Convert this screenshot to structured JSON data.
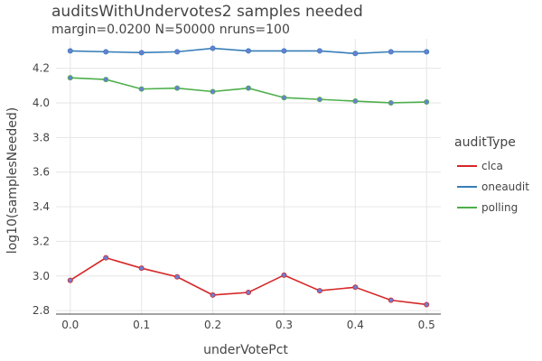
{
  "chart_data": {
    "type": "line",
    "title": "auditsWithUndervotes2 samples needed",
    "subtitle": "margin=0.0200 N=50000 nruns=100",
    "xlabel": "underVotePct",
    "ylabel": "log10(samplesNeeded)",
    "xlim": [
      -0.02,
      0.52
    ],
    "ylim": [
      2.78,
      4.37
    ],
    "xticks": [
      0.0,
      0.1,
      0.2,
      0.3,
      0.4,
      0.5
    ],
    "xtick_labels": [
      "0.0",
      "0.1",
      "0.2",
      "0.3",
      "0.4",
      "0.5"
    ],
    "yticks": [
      2.8,
      3.0,
      3.2,
      3.4,
      3.6,
      3.8,
      4.0,
      4.2
    ],
    "ytick_labels": [
      "2.8",
      "3.0",
      "3.2",
      "3.4",
      "3.6",
      "3.8",
      "4.0",
      "4.2"
    ],
    "grid": true,
    "legend_title": "auditType",
    "legend_position": "right",
    "x": [
      0.0,
      0.05,
      0.1,
      0.15,
      0.2,
      0.25,
      0.3,
      0.35,
      0.4,
      0.45,
      0.5
    ],
    "series": [
      {
        "name": "clca",
        "color": "#d62728",
        "values": [
          2.975,
          3.105,
          3.045,
          2.995,
          2.89,
          2.905,
          3.005,
          2.915,
          2.935,
          2.86,
          2.835
        ]
      },
      {
        "name": "oneaudit",
        "color": "#377eb8",
        "values": [
          4.3,
          4.295,
          4.29,
          4.295,
          4.315,
          4.3,
          4.3,
          4.3,
          4.285,
          4.295,
          4.295
        ]
      },
      {
        "name": "polling",
        "color": "#4daf4a",
        "values": [
          4.145,
          4.135,
          4.08,
          4.085,
          4.065,
          4.085,
          4.03,
          4.02,
          4.01,
          4.0,
          4.005
        ]
      }
    ],
    "marker_color": "#6a7fd4"
  }
}
